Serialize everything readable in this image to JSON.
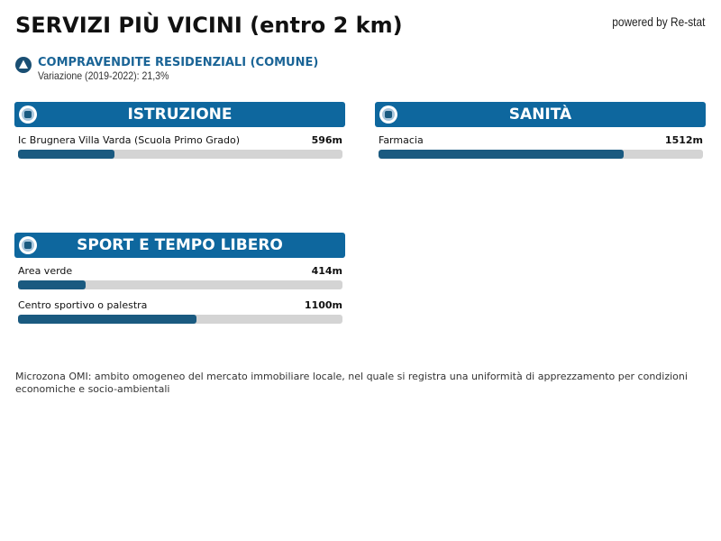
{
  "header": {
    "title": "SERVIZI PIÙ VICINI (entro 2 km)",
    "powered_by": "powered by Re-stat"
  },
  "indicator": {
    "label": "COMPRAVENDITE RESIDENZIALI (COMUNE)",
    "detail": "Variazione (2019-2022): 21,3%"
  },
  "xlim": [
    0,
    2000
  ],
  "sections": [
    {
      "title": "ISTRUZIONE",
      "items": [
        {
          "name": "Ic Brugnera Villa Varda (Scuola Primo Grado)",
          "value": 596,
          "value_label": "596m"
        }
      ]
    },
    {
      "title": "SANITÀ",
      "items": [
        {
          "name": "Farmacia",
          "value": 1512,
          "value_label": "1512m"
        }
      ]
    },
    {
      "title": "SPORT E TEMPO LIBERO",
      "items": [
        {
          "name": "Area verde",
          "value": 414,
          "value_label": "414m"
        },
        {
          "name": "Centro sportivo o palestra",
          "value": 1100,
          "value_label": "1100m"
        }
      ]
    }
  ],
  "footnote": "Microzona OMI: ambito omogeneo del mercato immobiliare locale, nel quale si registra una uniformità di apprezzamento per condizioni economiche e socio-ambientali"
}
